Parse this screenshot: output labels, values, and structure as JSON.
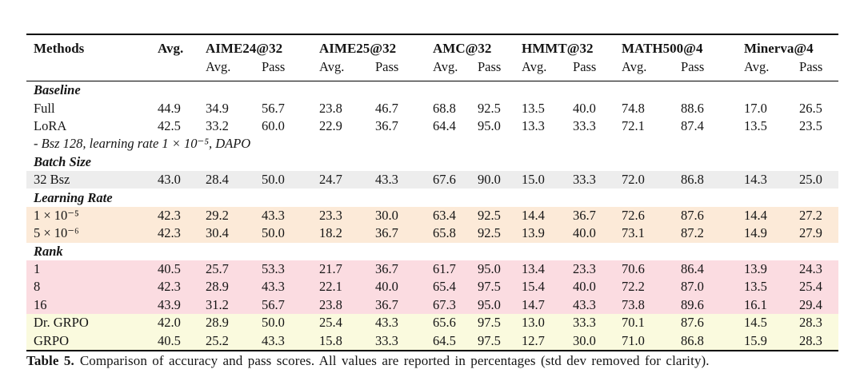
{
  "table": {
    "header": {
      "methods": "Methods",
      "overall_avg": "Avg.",
      "groups": [
        {
          "label": "AIME24@32",
          "avg": "Avg.",
          "pass": "Pass"
        },
        {
          "label": "AIME25@32",
          "avg": "Avg.",
          "pass": "Pass"
        },
        {
          "label": "AMC@32",
          "avg": "Avg.",
          "pass": "Pass"
        },
        {
          "label": "HMMT@32",
          "avg": "Avg.",
          "pass": "Pass"
        },
        {
          "label": "MATH500@4",
          "avg": "Avg.",
          "pass": "Pass"
        },
        {
          "label": "Minerva@4",
          "avg": "Avg.",
          "pass": "Pass"
        }
      ]
    },
    "rows": [
      {
        "type": "section",
        "label": "Baseline",
        "bg": "none"
      },
      {
        "type": "data",
        "label": "Full",
        "bg": "none",
        "values": [
          "44.9",
          "34.9",
          "56.7",
          "23.8",
          "46.7",
          "68.8",
          "92.5",
          "13.5",
          "40.0",
          "74.8",
          "88.6",
          "17.0",
          "26.5"
        ]
      },
      {
        "type": "data",
        "label": "LoRA",
        "bg": "none",
        "values": [
          "42.5",
          "33.2",
          "60.0",
          "22.9",
          "36.7",
          "64.4",
          "95.0",
          "13.3",
          "33.3",
          "72.1",
          "87.4",
          "13.5",
          "23.5"
        ]
      },
      {
        "type": "note",
        "label": "- Bsz 128, learning rate 1 × 10⁻⁵, DAPO",
        "bg": "none"
      },
      {
        "type": "section",
        "label": "Batch Size",
        "bg": "none"
      },
      {
        "type": "data",
        "label": "32 Bsz",
        "bg": "gray",
        "values": [
          "43.0",
          "28.4",
          "50.0",
          "24.7",
          "43.3",
          "67.6",
          "90.0",
          "15.0",
          "33.3",
          "72.0",
          "86.8",
          "14.3",
          "25.0"
        ]
      },
      {
        "type": "section",
        "label": "Learning Rate",
        "bg": "none"
      },
      {
        "type": "data",
        "label": "1 × 10⁻⁵",
        "bg": "peach",
        "values": [
          "42.3",
          "29.2",
          "43.3",
          "23.3",
          "30.0",
          "63.4",
          "92.5",
          "14.4",
          "36.7",
          "72.6",
          "87.6",
          "14.4",
          "27.2"
        ]
      },
      {
        "type": "data",
        "label": "5 × 10⁻⁶",
        "bg": "peach",
        "values": [
          "42.3",
          "30.4",
          "50.0",
          "18.2",
          "36.7",
          "65.8",
          "92.5",
          "13.9",
          "40.0",
          "73.1",
          "87.2",
          "14.9",
          "27.9"
        ]
      },
      {
        "type": "section",
        "label": "Rank",
        "bg": "none"
      },
      {
        "type": "data",
        "label": "1",
        "bg": "pink",
        "values": [
          "40.5",
          "25.7",
          "53.3",
          "21.7",
          "36.7",
          "61.7",
          "95.0",
          "13.4",
          "23.3",
          "70.6",
          "86.4",
          "13.9",
          "24.3"
        ]
      },
      {
        "type": "data",
        "label": "8",
        "bg": "pink",
        "values": [
          "42.3",
          "28.9",
          "43.3",
          "22.1",
          "40.0",
          "65.4",
          "97.5",
          "15.4",
          "40.0",
          "72.2",
          "87.0",
          "13.5",
          "25.4"
        ]
      },
      {
        "type": "data",
        "label": "16",
        "bg": "pink",
        "values": [
          "43.9",
          "31.2",
          "56.7",
          "23.8",
          "36.7",
          "67.3",
          "95.0",
          "14.7",
          "43.3",
          "73.8",
          "89.6",
          "16.1",
          "29.4"
        ]
      },
      {
        "type": "data",
        "label": "Dr. GRPO",
        "bg": "cream",
        "values": [
          "42.0",
          "28.9",
          "50.0",
          "25.4",
          "43.3",
          "65.6",
          "97.5",
          "13.0",
          "33.3",
          "70.1",
          "87.6",
          "14.5",
          "28.3"
        ]
      },
      {
        "type": "data",
        "label": "GRPO",
        "bg": "cream",
        "values": [
          "40.5",
          "25.2",
          "43.3",
          "15.8",
          "33.3",
          "64.5",
          "97.5",
          "12.7",
          "30.0",
          "71.0",
          "86.8",
          "15.9",
          "28.3"
        ]
      }
    ]
  },
  "caption": {
    "label": "Table 5.",
    "text": "Comparison of accuracy and pass scores. All values are reported in percentages (std dev removed for clarity)."
  },
  "colors": {
    "row_gray": "#ededed",
    "row_peach": "#fcead8",
    "row_pink": "#fbdce1",
    "row_cream": "#fafade",
    "rule": "#000000"
  }
}
